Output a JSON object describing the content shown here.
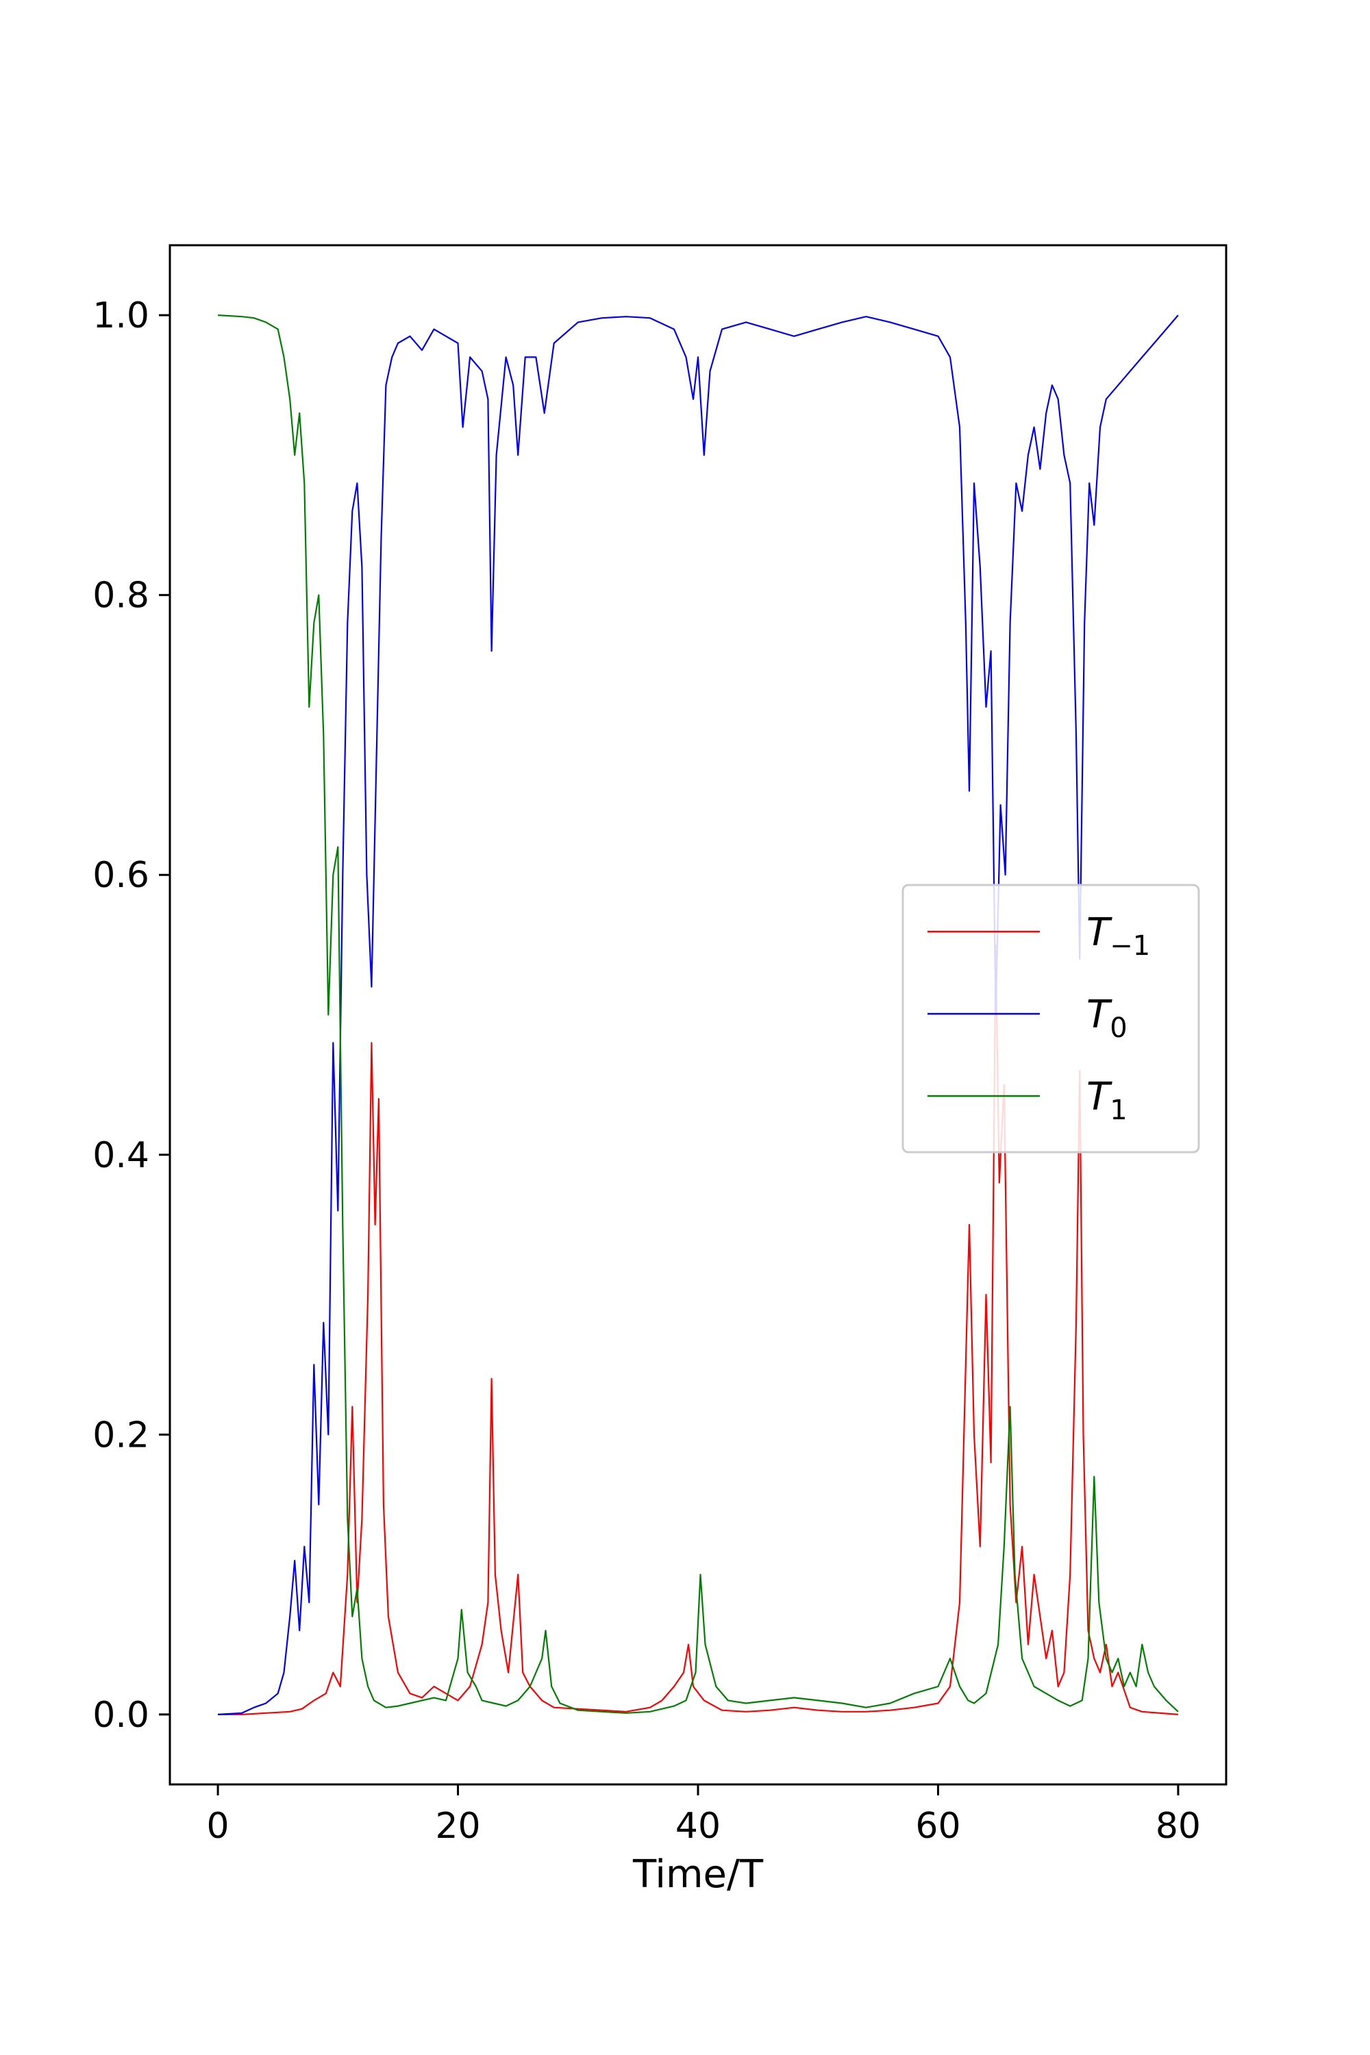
{
  "chart_data": {
    "type": "line",
    "title": "",
    "xlabel": "Time/T",
    "ylabel": "",
    "xlim": [
      -4,
      84
    ],
    "ylim": [
      -0.05,
      1.05
    ],
    "xticks": [
      0,
      20,
      40,
      60,
      80
    ],
    "yticks": [
      0.0,
      0.2,
      0.4,
      0.6,
      0.8,
      1.0
    ],
    "xtick_labels": [
      "0",
      "20",
      "40",
      "60",
      "80"
    ],
    "ytick_labels": [
      "0.0",
      "0.2",
      "0.4",
      "0.6",
      "0.8",
      "1.0"
    ],
    "grid": false,
    "legend_position": "center-right",
    "series": [
      {
        "name": "T-1",
        "legend_main": "T",
        "legend_sub": "−1",
        "color": "#ff0000",
        "points": [
          [
            0,
            0
          ],
          [
            2,
            0
          ],
          [
            4,
            0.001
          ],
          [
            6,
            0.002
          ],
          [
            7,
            0.004
          ],
          [
            8,
            0.01
          ],
          [
            9,
            0.015
          ],
          [
            9.6,
            0.03
          ],
          [
            10.2,
            0.02
          ],
          [
            10.8,
            0.1
          ],
          [
            11.2,
            0.22
          ],
          [
            11.6,
            0.08
          ],
          [
            12,
            0.14
          ],
          [
            12.5,
            0.3
          ],
          [
            12.8,
            0.48
          ],
          [
            13.1,
            0.35
          ],
          [
            13.4,
            0.44
          ],
          [
            13.8,
            0.15
          ],
          [
            14.2,
            0.07
          ],
          [
            15,
            0.03
          ],
          [
            16,
            0.015
          ],
          [
            17,
            0.012
          ],
          [
            18,
            0.02
          ],
          [
            19,
            0.015
          ],
          [
            20,
            0.01
          ],
          [
            21,
            0.02
          ],
          [
            22,
            0.05
          ],
          [
            22.5,
            0.08
          ],
          [
            22.8,
            0.24
          ],
          [
            23.1,
            0.1
          ],
          [
            23.6,
            0.06
          ],
          [
            24.2,
            0.03
          ],
          [
            25,
            0.1
          ],
          [
            25.4,
            0.03
          ],
          [
            26,
            0.02
          ],
          [
            27,
            0.01
          ],
          [
            28,
            0.005
          ],
          [
            30,
            0.004
          ],
          [
            32,
            0.003
          ],
          [
            34,
            0.002
          ],
          [
            36,
            0.005
          ],
          [
            37,
            0.01
          ],
          [
            38,
            0.02
          ],
          [
            38.8,
            0.03
          ],
          [
            39.2,
            0.05
          ],
          [
            39.6,
            0.02
          ],
          [
            40.5,
            0.01
          ],
          [
            42,
            0.003
          ],
          [
            44,
            0.002
          ],
          [
            46,
            0.003
          ],
          [
            48,
            0.005
          ],
          [
            50,
            0.003
          ],
          [
            52,
            0.002
          ],
          [
            54,
            0.002
          ],
          [
            56,
            0.003
          ],
          [
            58,
            0.005
          ],
          [
            60,
            0.008
          ],
          [
            61,
            0.02
          ],
          [
            61.8,
            0.08
          ],
          [
            62.3,
            0.25
          ],
          [
            62.6,
            0.35
          ],
          [
            63,
            0.2
          ],
          [
            63.5,
            0.12
          ],
          [
            64,
            0.3
          ],
          [
            64.4,
            0.18
          ],
          [
            64.8,
            0.55
          ],
          [
            65.1,
            0.38
          ],
          [
            65.5,
            0.45
          ],
          [
            66,
            0.15
          ],
          [
            66.5,
            0.08
          ],
          [
            67,
            0.12
          ],
          [
            67.5,
            0.05
          ],
          [
            68,
            0.1
          ],
          [
            68.5,
            0.07
          ],
          [
            69,
            0.04
          ],
          [
            69.5,
            0.06
          ],
          [
            70,
            0.02
          ],
          [
            70.5,
            0.03
          ],
          [
            71,
            0.1
          ],
          [
            71.5,
            0.28
          ],
          [
            71.8,
            0.46
          ],
          [
            72.1,
            0.2
          ],
          [
            72.5,
            0.06
          ],
          [
            73,
            0.04
          ],
          [
            73.5,
            0.03
          ],
          [
            74,
            0.05
          ],
          [
            74.5,
            0.02
          ],
          [
            75,
            0.03
          ],
          [
            76,
            0.005
          ],
          [
            77,
            0.002
          ],
          [
            80,
            0
          ]
        ]
      },
      {
        "name": "T0",
        "legend_main": "T",
        "legend_sub": "0",
        "color": "#0000ff",
        "points": [
          [
            0,
            0
          ],
          [
            2,
            0.001
          ],
          [
            3,
            0.005
          ],
          [
            4,
            0.008
          ],
          [
            5,
            0.015
          ],
          [
            5.5,
            0.03
          ],
          [
            6,
            0.07
          ],
          [
            6.4,
            0.11
          ],
          [
            6.8,
            0.06
          ],
          [
            7.2,
            0.12
          ],
          [
            7.6,
            0.08
          ],
          [
            8,
            0.25
          ],
          [
            8.4,
            0.15
          ],
          [
            8.8,
            0.28
          ],
          [
            9.2,
            0.2
          ],
          [
            9.6,
            0.48
          ],
          [
            10,
            0.36
          ],
          [
            10.4,
            0.6
          ],
          [
            10.8,
            0.78
          ],
          [
            11.2,
            0.86
          ],
          [
            11.6,
            0.88
          ],
          [
            12,
            0.82
          ],
          [
            12.4,
            0.6
          ],
          [
            12.8,
            0.52
          ],
          [
            13.2,
            0.68
          ],
          [
            13.6,
            0.84
          ],
          [
            14,
            0.95
          ],
          [
            14.5,
            0.97
          ],
          [
            15,
            0.98
          ],
          [
            16,
            0.985
          ],
          [
            17,
            0.975
          ],
          [
            18,
            0.99
          ],
          [
            19,
            0.985
          ],
          [
            20,
            0.98
          ],
          [
            20.4,
            0.92
          ],
          [
            21,
            0.97
          ],
          [
            22,
            0.96
          ],
          [
            22.5,
            0.94
          ],
          [
            22.8,
            0.76
          ],
          [
            23.2,
            0.9
          ],
          [
            24,
            0.97
          ],
          [
            24.6,
            0.95
          ],
          [
            25,
            0.9
          ],
          [
            25.6,
            0.97
          ],
          [
            26.5,
            0.97
          ],
          [
            27.2,
            0.93
          ],
          [
            28,
            0.98
          ],
          [
            30,
            0.995
          ],
          [
            32,
            0.998
          ],
          [
            34,
            0.999
          ],
          [
            36,
            0.998
          ],
          [
            38,
            0.99
          ],
          [
            39,
            0.97
          ],
          [
            39.6,
            0.94
          ],
          [
            40,
            0.97
          ],
          [
            40.5,
            0.9
          ],
          [
            41,
            0.96
          ],
          [
            42,
            0.99
          ],
          [
            44,
            0.995
          ],
          [
            46,
            0.99
          ],
          [
            48,
            0.985
          ],
          [
            50,
            0.99
          ],
          [
            52,
            0.995
          ],
          [
            54,
            0.999
          ],
          [
            56,
            0.995
          ],
          [
            58,
            0.99
          ],
          [
            60,
            0.985
          ],
          [
            61,
            0.97
          ],
          [
            61.8,
            0.92
          ],
          [
            62.3,
            0.78
          ],
          [
            62.6,
            0.66
          ],
          [
            63,
            0.88
          ],
          [
            63.5,
            0.82
          ],
          [
            64,
            0.72
          ],
          [
            64.4,
            0.76
          ],
          [
            64.8,
            0.5
          ],
          [
            65.2,
            0.65
          ],
          [
            65.6,
            0.6
          ],
          [
            66,
            0.78
          ],
          [
            66.5,
            0.88
          ],
          [
            67,
            0.86
          ],
          [
            67.5,
            0.9
          ],
          [
            68,
            0.92
          ],
          [
            68.5,
            0.89
          ],
          [
            69,
            0.93
          ],
          [
            69.5,
            0.95
          ],
          [
            70,
            0.94
          ],
          [
            70.5,
            0.9
          ],
          [
            71,
            0.88
          ],
          [
            71.5,
            0.7
          ],
          [
            71.8,
            0.54
          ],
          [
            72.2,
            0.78
          ],
          [
            72.6,
            0.88
          ],
          [
            73,
            0.85
          ],
          [
            73.5,
            0.92
          ],
          [
            74,
            0.94
          ],
          [
            75,
            0.95
          ],
          [
            76,
            0.96
          ],
          [
            77,
            0.97
          ],
          [
            78,
            0.98
          ],
          [
            79,
            0.99
          ],
          [
            80,
            1.0
          ]
        ]
      },
      {
        "name": "T1",
        "legend_main": "T",
        "legend_sub": "1",
        "color": "#008000",
        "points": [
          [
            0,
            1.0
          ],
          [
            2,
            0.999
          ],
          [
            3,
            0.998
          ],
          [
            4,
            0.995
          ],
          [
            5,
            0.99
          ],
          [
            5.5,
            0.97
          ],
          [
            6,
            0.94
          ],
          [
            6.4,
            0.9
          ],
          [
            6.8,
            0.93
          ],
          [
            7.2,
            0.88
          ],
          [
            7.6,
            0.72
          ],
          [
            8,
            0.78
          ],
          [
            8.4,
            0.8
          ],
          [
            8.8,
            0.7
          ],
          [
            9.2,
            0.5
          ],
          [
            9.6,
            0.6
          ],
          [
            10,
            0.62
          ],
          [
            10.4,
            0.35
          ],
          [
            10.8,
            0.14
          ],
          [
            11.2,
            0.07
          ],
          [
            11.6,
            0.09
          ],
          [
            12,
            0.04
          ],
          [
            12.5,
            0.02
          ],
          [
            13,
            0.01
          ],
          [
            14,
            0.005
          ],
          [
            15,
            0.006
          ],
          [
            16,
            0.008
          ],
          [
            17,
            0.01
          ],
          [
            18,
            0.012
          ],
          [
            19,
            0.01
          ],
          [
            20,
            0.04
          ],
          [
            20.3,
            0.075
          ],
          [
            20.8,
            0.03
          ],
          [
            21.5,
            0.02
          ],
          [
            22,
            0.01
          ],
          [
            23,
            0.008
          ],
          [
            24,
            0.006
          ],
          [
            25,
            0.01
          ],
          [
            26,
            0.02
          ],
          [
            27,
            0.04
          ],
          [
            27.3,
            0.06
          ],
          [
            27.8,
            0.02
          ],
          [
            28.5,
            0.008
          ],
          [
            30,
            0.003
          ],
          [
            32,
            0.002
          ],
          [
            34,
            0.001
          ],
          [
            36,
            0.002
          ],
          [
            37,
            0.004
          ],
          [
            38,
            0.006
          ],
          [
            39,
            0.01
          ],
          [
            39.8,
            0.03
          ],
          [
            40.2,
            0.1
          ],
          [
            40.6,
            0.05
          ],
          [
            41.5,
            0.02
          ],
          [
            42.5,
            0.01
          ],
          [
            44,
            0.008
          ],
          [
            46,
            0.01
          ],
          [
            48,
            0.012
          ],
          [
            50,
            0.01
          ],
          [
            52,
            0.008
          ],
          [
            54,
            0.005
          ],
          [
            56,
            0.008
          ],
          [
            58,
            0.015
          ],
          [
            60,
            0.02
          ],
          [
            61,
            0.04
          ],
          [
            61.8,
            0.02
          ],
          [
            62.5,
            0.01
          ],
          [
            63,
            0.008
          ],
          [
            64,
            0.015
          ],
          [
            65,
            0.05
          ],
          [
            65.5,
            0.12
          ],
          [
            66,
            0.22
          ],
          [
            66.4,
            0.1
          ],
          [
            67,
            0.04
          ],
          [
            67.5,
            0.03
          ],
          [
            68,
            0.02
          ],
          [
            69,
            0.015
          ],
          [
            70,
            0.01
          ],
          [
            71,
            0.006
          ],
          [
            72,
            0.01
          ],
          [
            72.5,
            0.04
          ],
          [
            73,
            0.17
          ],
          [
            73.4,
            0.08
          ],
          [
            74,
            0.04
          ],
          [
            74.5,
            0.03
          ],
          [
            75,
            0.04
          ],
          [
            75.5,
            0.02
          ],
          [
            76,
            0.03
          ],
          [
            76.5,
            0.02
          ],
          [
            77,
            0.05
          ],
          [
            77.5,
            0.03
          ],
          [
            78,
            0.02
          ],
          [
            79,
            0.01
          ],
          [
            80,
            0.002
          ]
        ]
      }
    ]
  }
}
